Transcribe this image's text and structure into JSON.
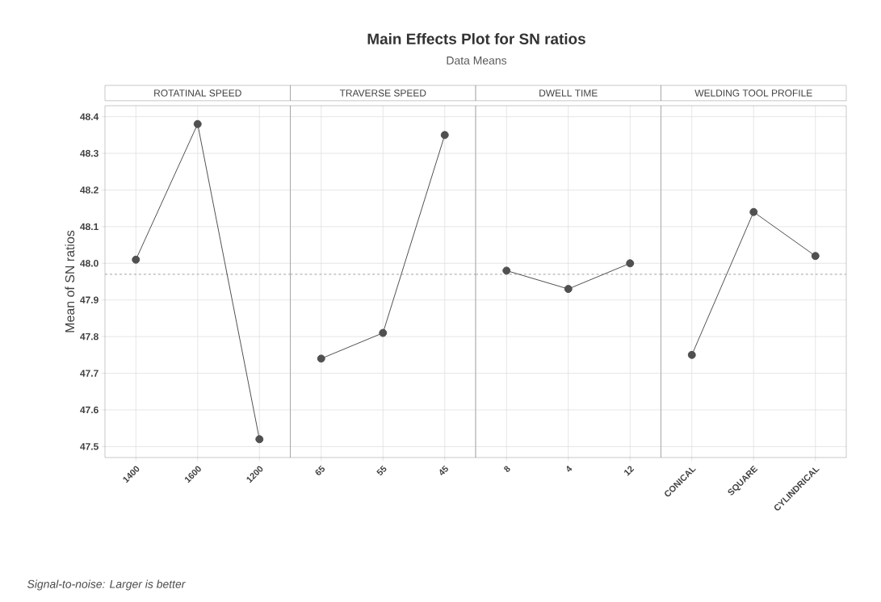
{
  "chart_data": [
    {
      "type": "other",
      "title": "Main Effects Plot for SN ratios",
      "subtitle": "Data Means",
      "annotations": [
        "Signal-to-noise: Larger is better"
      ]
    },
    {
      "type": "line",
      "title": "ROTATINAL SPEED",
      "ylabel": "Mean of SN ratios",
      "categories": [
        "1400",
        "1600",
        "1200"
      ],
      "values": [
        48.01,
        48.38,
        47.52
      ],
      "color": "#505050",
      "marker": "circle",
      "ylim": [
        47.47,
        48.43
      ],
      "yticks": [
        47.5,
        47.6,
        47.7,
        47.8,
        47.9,
        {
          "value": 48.0,
          "label": "48.0"
        },
        48.1,
        48.2,
        48.3,
        48.4
      ],
      "grid": true,
      "ref_lines": [
        {
          "axis": "y",
          "value": 47.97,
          "color": "#b4b4b4",
          "line_style": "dashed"
        }
      ]
    },
    {
      "type": "line",
      "title": "TRAVERSE SPEED",
      "categories": [
        "65",
        "55",
        "45"
      ],
      "values": [
        47.74,
        47.81,
        48.35
      ],
      "color": "#505050",
      "marker": "circle",
      "ylim": [
        47.47,
        48.43
      ],
      "yticks": [
        47.5,
        47.6,
        47.7,
        47.8,
        47.9,
        48.0,
        48.1,
        48.2,
        48.3,
        48.4
      ],
      "grid": true,
      "tick_labels": "x",
      "ref_lines": [
        {
          "axis": "y",
          "value": 47.97,
          "color": "#b4b4b4",
          "line_style": "dashed"
        }
      ]
    },
    {
      "type": "line",
      "title": "DWELL TIME",
      "categories": [
        "8",
        "4",
        "12"
      ],
      "values": [
        47.98,
        47.93,
        48.0
      ],
      "color": "#505050",
      "marker": "circle",
      "ylim": [
        47.47,
        48.43
      ],
      "yticks": [
        47.5,
        47.6,
        47.7,
        47.8,
        47.9,
        48.0,
        48.1,
        48.2,
        48.3,
        48.4
      ],
      "grid": true,
      "tick_labels": "x",
      "ref_lines": [
        {
          "axis": "y",
          "value": 47.97,
          "color": "#b4b4b4",
          "line_style": "dashed"
        }
      ]
    },
    {
      "type": "line",
      "title": "WELDING TOOL PROFILE",
      "categories": [
        "CONICAL",
        "SQUARE",
        "CYLINDRICAL"
      ],
      "values": [
        47.75,
        48.14,
        48.02
      ],
      "color": "#505050",
      "marker": "circle",
      "ylim": [
        47.47,
        48.43
      ],
      "yticks": [
        47.5,
        47.6,
        47.7,
        47.8,
        47.9,
        48.0,
        48.1,
        48.2,
        48.3,
        48.4
      ],
      "grid": true,
      "tick_labels": "x",
      "ref_lines": [
        {
          "axis": "y",
          "value": 47.97,
          "color": "#b4b4b4",
          "line_style": "dashed"
        }
      ]
    }
  ]
}
